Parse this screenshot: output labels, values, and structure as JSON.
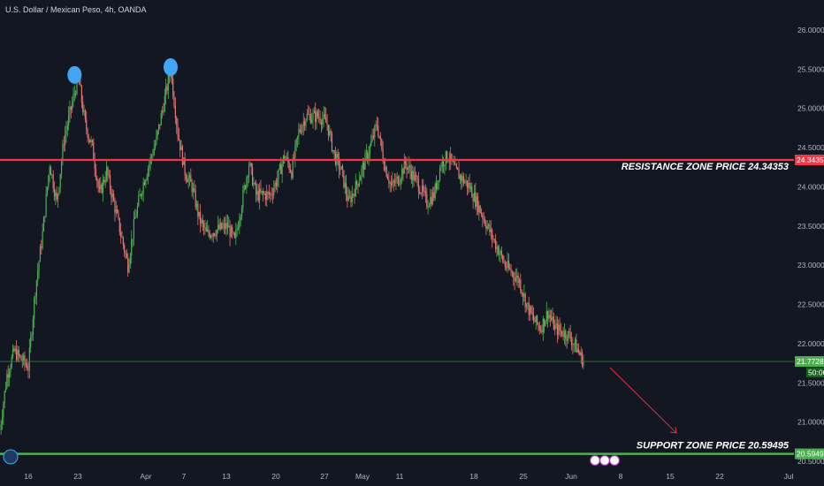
{
  "header": {
    "title": "U.S. Dollar / Mexican Peso, 4h, OANDA"
  },
  "colors": {
    "background": "#131722",
    "bull": "#26a69a",
    "bear": "#ef5350",
    "candle_up": "#4caf50",
    "candle_down": "#e57373",
    "resistance": "#f23645",
    "support": "#4caf50",
    "marker": "#42a5f5",
    "arrow": "#e53935"
  },
  "chart_data": {
    "type": "candlestick",
    "symbol": "USDMXN",
    "interval": "4h",
    "ylim": [
      20.45,
      26.2
    ],
    "y_ticks": [
      "26.00000",
      "25.50000",
      "25.00000",
      "24.50000",
      "24.00000",
      "23.50000",
      "23.00000",
      "22.50000",
      "22.00000",
      "21.50000",
      "21.00000",
      "20.50000"
    ],
    "x_ticks": [
      "16",
      "23",
      "Apr",
      "7",
      "13",
      "20",
      "27",
      "May",
      "11",
      "18",
      "25",
      "Jun",
      "8",
      "15",
      "22",
      "Jul"
    ],
    "price_path": [
      {
        "x": "Mar 12",
        "y": 20.9
      },
      {
        "x": "Mar 13",
        "y": 21.6
      },
      {
        "x": "Mar 14",
        "y": 21.9
      },
      {
        "x": "Mar 16",
        "y": 21.7
      },
      {
        "x": "Mar 17",
        "y": 22.7
      },
      {
        "x": "Mar 18",
        "y": 23.4
      },
      {
        "x": "Mar 19",
        "y": 24.3
      },
      {
        "x": "Mar 20",
        "y": 23.8
      },
      {
        "x": "Mar 21",
        "y": 24.6
      },
      {
        "x": "Mar 23",
        "y": 25.4
      },
      {
        "x": "Mar 24",
        "y": 24.8
      },
      {
        "x": "Mar 25",
        "y": 24.5
      },
      {
        "x": "Mar 26",
        "y": 23.9
      },
      {
        "x": "Mar 27",
        "y": 24.2
      },
      {
        "x": "Mar 30",
        "y": 23.0
      },
      {
        "x": "Mar 31",
        "y": 23.6
      },
      {
        "x": "Apr 1",
        "y": 24.0
      },
      {
        "x": "Apr 2",
        "y": 24.3
      },
      {
        "x": "Apr 3",
        "y": 24.6
      },
      {
        "x": "Apr 5",
        "y": 25.5
      },
      {
        "x": "Apr 6",
        "y": 24.7
      },
      {
        "x": "Apr 7",
        "y": 24.2
      },
      {
        "x": "Apr 8",
        "y": 24.0
      },
      {
        "x": "Apr 9",
        "y": 23.6
      },
      {
        "x": "Apr 10",
        "y": 23.4
      },
      {
        "x": "Apr 13",
        "y": 23.5
      },
      {
        "x": "Apr 14",
        "y": 23.3
      },
      {
        "x": "Apr 15",
        "y": 23.8
      },
      {
        "x": "Apr 16",
        "y": 24.3
      },
      {
        "x": "Apr 17",
        "y": 23.9
      },
      {
        "x": "Apr 19",
        "y": 23.9
      },
      {
        "x": "Apr 20",
        "y": 24.1
      },
      {
        "x": "Apr 21",
        "y": 24.4
      },
      {
        "x": "Apr 22",
        "y": 24.2
      },
      {
        "x": "Apr 23",
        "y": 24.7
      },
      {
        "x": "Apr 24",
        "y": 24.9
      },
      {
        "x": "Apr 26",
        "y": 24.9
      },
      {
        "x": "Apr 27",
        "y": 24.8
      },
      {
        "x": "Apr 28",
        "y": 24.4
      },
      {
        "x": "Apr 29",
        "y": 24.2
      },
      {
        "x": "Apr 30",
        "y": 23.8
      },
      {
        "x": "May 1",
        "y": 24.0
      },
      {
        "x": "May 3",
        "y": 24.5
      },
      {
        "x": "May 4",
        "y": 24.8
      },
      {
        "x": "May 5",
        "y": 24.3
      },
      {
        "x": "May 6",
        "y": 24.0
      },
      {
        "x": "May 7",
        "y": 24.1
      },
      {
        "x": "May 8",
        "y": 24.3
      },
      {
        "x": "May 10",
        "y": 24.0
      },
      {
        "x": "May 11",
        "y": 23.8
      },
      {
        "x": "May 12",
        "y": 23.9
      },
      {
        "x": "May 13",
        "y": 24.3
      },
      {
        "x": "May 14",
        "y": 24.4
      },
      {
        "x": "May 15",
        "y": 24.2
      },
      {
        "x": "May 17",
        "y": 24.0
      },
      {
        "x": "May 18",
        "y": 23.8
      },
      {
        "x": "May 19",
        "y": 23.6
      },
      {
        "x": "May 20",
        "y": 23.4
      },
      {
        "x": "May 21",
        "y": 23.2
      },
      {
        "x": "May 22",
        "y": 23.0
      },
      {
        "x": "May 24",
        "y": 22.8
      },
      {
        "x": "May 25",
        "y": 22.5
      },
      {
        "x": "May 26",
        "y": 22.3
      },
      {
        "x": "May 27",
        "y": 22.2
      },
      {
        "x": "May 28",
        "y": 22.4
      },
      {
        "x": "May 29",
        "y": 22.2
      },
      {
        "x": "May 31",
        "y": 22.1
      },
      {
        "x": "Jun 1",
        "y": 21.95
      },
      {
        "x": "Jun 2",
        "y": 21.77
      }
    ],
    "last_price": "21.77283",
    "countdown": "50:06",
    "resistance": {
      "price": 24.34353,
      "price_label": "24.34353",
      "label": "RESISTANCE ZONE PRICE 24.34353"
    },
    "support": {
      "price": 20.59495,
      "price_label": "20.59495",
      "label": "SUPPORT ZONE PRICE 20.59495"
    },
    "current_line": {
      "price": 21.77283
    },
    "markers": [
      {
        "x": "Mar 23",
        "y": 25.45
      },
      {
        "x": "Apr 5",
        "y": 25.55
      }
    ],
    "projection": {
      "from": {
        "x": "Jun 3",
        "y": 21.75
      },
      "to": {
        "x": "Jun 15",
        "y": 20.75
      }
    },
    "grid": false
  }
}
